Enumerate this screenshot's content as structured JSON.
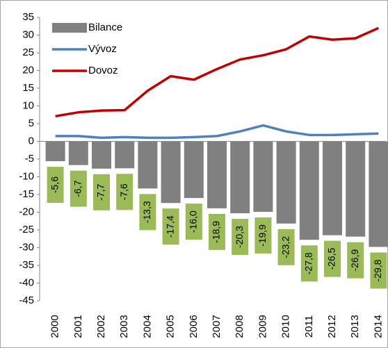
{
  "chart_data": {
    "type": "bar",
    "categories": [
      "2000",
      "2001",
      "2002",
      "2003",
      "2004",
      "2005",
      "2006",
      "2007",
      "2008",
      "2009",
      "2010",
      "2011",
      "2012",
      "2013",
      "2014"
    ],
    "series": [
      {
        "name": "Bilance",
        "type": "bar",
        "color": "#808080",
        "label_color": "#9bbb59",
        "values": [
          -5.6,
          -6.7,
          -7.7,
          -7.6,
          -13.3,
          -17.4,
          -16.0,
          -18.9,
          -20.3,
          -19.9,
          -23.2,
          -27.8,
          -26.5,
          -26.9,
          -29.8
        ],
        "value_labels": [
          "-5,6",
          "-6,7",
          "-7,7",
          "-7,6",
          "-13,3",
          "-17,4",
          "-16,0",
          "-18,9",
          "-20,3",
          "-19,9",
          "-23,2",
          "-27,8",
          "-26,5",
          "-26,9",
          "-29,8"
        ]
      },
      {
        "name": "Vývoz",
        "type": "line",
        "color": "#4f81bd",
        "values": [
          1.5,
          1.5,
          1.0,
          1.2,
          1.0,
          1.0,
          1.2,
          1.5,
          2.8,
          4.5,
          2.8,
          1.8,
          1.8,
          2.0,
          2.2
        ]
      },
      {
        "name": "Dovoz",
        "type": "line",
        "color": "#c00000",
        "values": [
          7.1,
          8.2,
          8.7,
          8.8,
          14.3,
          18.4,
          17.4,
          20.4,
          23.1,
          24.3,
          26.0,
          29.6,
          28.7,
          29.1,
          32.0
        ]
      }
    ],
    "ylim": [
      -45,
      35
    ],
    "yticks": [
      -45,
      -40,
      -35,
      -30,
      -25,
      -20,
      -15,
      -10,
      -5,
      0,
      5,
      10,
      15,
      20,
      25,
      30,
      35
    ],
    "legend": "top-left"
  }
}
